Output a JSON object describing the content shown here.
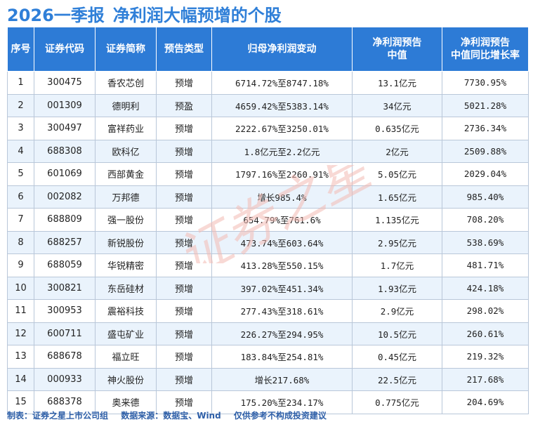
{
  "header": {
    "title_a": "2026一季报",
    "title_b": "净利润大幅预增的个股"
  },
  "table": {
    "columns": [
      "序号",
      "证券代码",
      "证券简称",
      "预告类型",
      "归母净利润变动",
      "净利润预告\n中值",
      "净利润预告\n中值同比增长率"
    ],
    "rows": [
      [
        "1",
        "300475",
        "香农芯创",
        "预增",
        "6714.72%至8747.18%",
        "13.1亿元",
        "7730.95%"
      ],
      [
        "2",
        "001309",
        "德明利",
        "预盈",
        "4659.42%至5383.14%",
        "34亿元",
        "5021.28%"
      ],
      [
        "3",
        "300497",
        "富祥药业",
        "预增",
        "2222.67%至3250.01%",
        "0.635亿元",
        "2736.34%"
      ],
      [
        "4",
        "688308",
        "欧科亿",
        "预增",
        "1.8亿元至2.2亿元",
        "2亿元",
        "2509.88%"
      ],
      [
        "5",
        "601069",
        "西部黄金",
        "预增",
        "1797.16%至2260.91%",
        "5.05亿元",
        "2029.04%"
      ],
      [
        "6",
        "002082",
        "万邦德",
        "预增",
        "增长985.4%",
        "1.65亿元",
        "985.40%"
      ],
      [
        "7",
        "688809",
        "强一股份",
        "预增",
        "654.79%至761.6%",
        "1.135亿元",
        "708.20%"
      ],
      [
        "8",
        "688257",
        "新锐股份",
        "预增",
        "473.74%至603.64%",
        "2.95亿元",
        "538.69%"
      ],
      [
        "9",
        "688059",
        "华锐精密",
        "预增",
        "413.28%至550.15%",
        "1.7亿元",
        "481.71%"
      ],
      [
        "10",
        "300821",
        "东岳硅材",
        "预增",
        "397.02%至451.34%",
        "1.93亿元",
        "424.18%"
      ],
      [
        "11",
        "300953",
        "震裕科技",
        "预增",
        "277.43%至318.61%",
        "2.9亿元",
        "298.02%"
      ],
      [
        "12",
        "600711",
        "盛屯矿业",
        "预增",
        "226.27%至294.95%",
        "10.5亿元",
        "260.61%"
      ],
      [
        "13",
        "688678",
        "福立旺",
        "预增",
        "183.84%至254.81%",
        "0.45亿元",
        "219.32%"
      ],
      [
        "14",
        "000933",
        "神火股份",
        "预增",
        "增长217.68%",
        "22.5亿元",
        "217.68%"
      ],
      [
        "15",
        "688378",
        "奥来德",
        "预增",
        "175.20%至234.17%",
        "0.775亿元",
        "204.69%"
      ]
    ]
  },
  "footer": {
    "made_by": "制表：证券之星上市公司组",
    "source": "数据来源：数据宝、Wind",
    "disclaimer": "仅供参考不构成投资建议"
  },
  "watermark": {
    "text": "证券之星"
  },
  "colors": {
    "title": "#2f7fd8",
    "header_bg": "#2d7bd6",
    "stripe": "#eaf3fc",
    "footer": "#2e5fa8",
    "watermark": "#f2b9b3"
  }
}
